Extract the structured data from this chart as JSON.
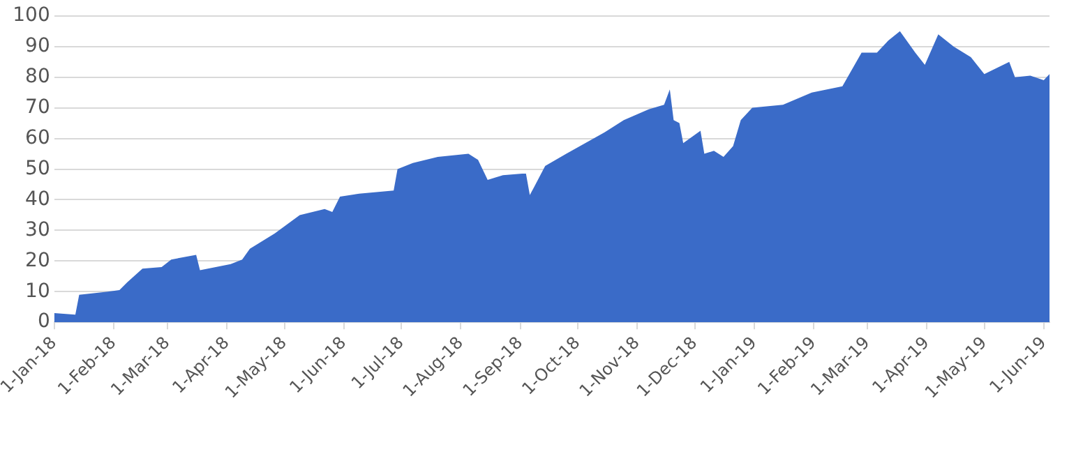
{
  "chart_data": {
    "type": "area",
    "x": [
      "2018-01-01",
      "2018-01-12",
      "2018-01-14",
      "2018-01-29",
      "2018-02-04",
      "2018-02-08",
      "2018-02-16",
      "2018-02-26",
      "2018-03-03",
      "2018-03-16",
      "2018-03-18",
      "2018-04-03",
      "2018-04-09",
      "2018-04-13",
      "2018-04-26",
      "2018-05-09",
      "2018-05-22",
      "2018-05-26",
      "2018-05-30",
      "2018-06-09",
      "2018-06-27",
      "2018-06-29",
      "2018-07-07",
      "2018-07-20",
      "2018-08-05",
      "2018-08-10",
      "2018-08-15",
      "2018-08-23",
      "2018-09-02",
      "2018-09-04",
      "2018-09-06",
      "2018-09-14",
      "2018-09-25",
      "2018-10-15",
      "2018-10-25",
      "2018-11-07",
      "2018-11-15",
      "2018-11-18",
      "2018-11-20",
      "2018-11-23",
      "2018-11-25",
      "2018-12-04",
      "2018-12-06",
      "2018-12-11",
      "2018-12-16",
      "2018-12-21",
      "2018-12-25",
      "2018-12-31",
      "2019-01-16",
      "2019-01-31",
      "2019-02-16",
      "2019-02-26",
      "2019-03-06",
      "2019-03-12",
      "2019-03-18",
      "2019-03-26",
      "2019-03-31",
      "2019-04-07",
      "2019-04-15",
      "2019-04-24",
      "2019-05-01",
      "2019-05-14",
      "2019-05-17",
      "2019-05-25",
      "2019-06-01",
      "2019-06-04"
    ],
    "series": [
      {
        "color": "#3a6bc8",
        "values": [
          3,
          2.5,
          9,
          10,
          10.5,
          13,
          17.5,
          18,
          20.5,
          22,
          17,
          19,
          20.5,
          24,
          29,
          35,
          37,
          36,
          41,
          42,
          43,
          50,
          52,
          54,
          55,
          53,
          46.5,
          48,
          48.5,
          48.5,
          41.5,
          51,
          55,
          62,
          66,
          69.5,
          71,
          76,
          66,
          65,
          58.5,
          62.5,
          55,
          56,
          54,
          57.5,
          66,
          70,
          71,
          75,
          77,
          88,
          88,
          92,
          95,
          88,
          84,
          94,
          90,
          86.5,
          81,
          85,
          80,
          80.5,
          79,
          81
        ]
      }
    ],
    "xlim": [
      "2018-01-01",
      "2019-06-04"
    ],
    "xticks": [
      {
        "value": "2018-01-01",
        "label": "1-Jan-18"
      },
      {
        "value": "2018-02-01",
        "label": "1-Feb-18"
      },
      {
        "value": "2018-03-01",
        "label": "1-Mar-18"
      },
      {
        "value": "2018-04-01",
        "label": "1-Apr-18"
      },
      {
        "value": "2018-05-01",
        "label": "1-May-18"
      },
      {
        "value": "2018-06-01",
        "label": "1-Jun-18"
      },
      {
        "value": "2018-07-01",
        "label": "1-Jul-18"
      },
      {
        "value": "2018-08-01",
        "label": "1-Aug-18"
      },
      {
        "value": "2018-09-01",
        "label": "1-Sep-18"
      },
      {
        "value": "2018-10-01",
        "label": "1-Oct-18"
      },
      {
        "value": "2018-11-01",
        "label": "1-Nov-18"
      },
      {
        "value": "2018-12-01",
        "label": "1-Dec-18"
      },
      {
        "value": "2019-01-01",
        "label": "1-Jan-19"
      },
      {
        "value": "2019-02-01",
        "label": "1-Feb-19"
      },
      {
        "value": "2019-03-01",
        "label": "1-Mar-19"
      },
      {
        "value": "2019-04-01",
        "label": "1-Apr-19"
      },
      {
        "value": "2019-05-01",
        "label": "1-May-19"
      },
      {
        "value": "2019-06-01",
        "label": "1-Jun-19"
      }
    ],
    "ylim": [
      0,
      100
    ],
    "yticks": [
      0,
      10,
      20,
      30,
      40,
      50,
      60,
      70,
      80,
      90,
      100
    ],
    "grid": "y",
    "legend": false
  }
}
